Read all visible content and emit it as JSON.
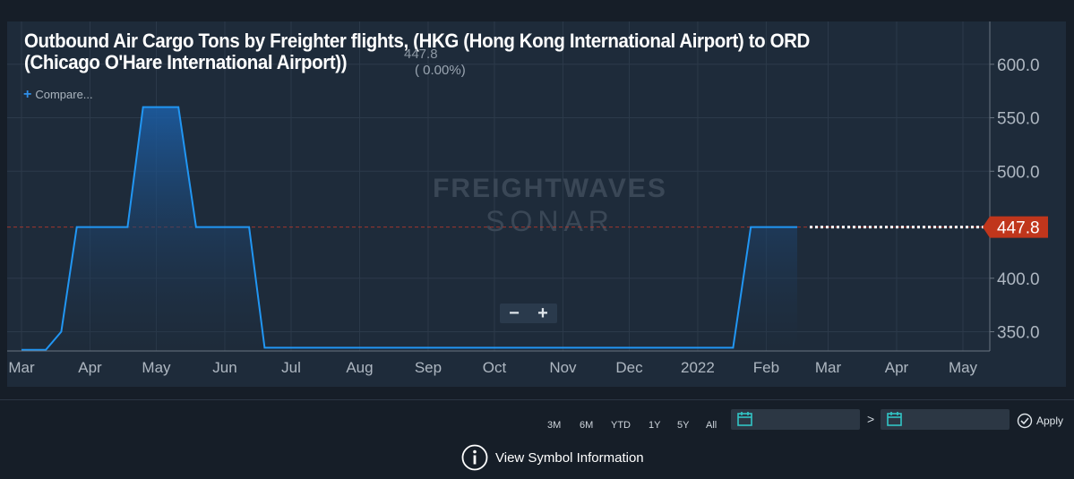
{
  "header": {
    "title": "Outbound Air Cargo Tons by Freighter flights, (HKG (Hong Kong International Airport) to ORD (Chicago O'Hare International Airport))",
    "last_value": "447.8",
    "change": "( 0.00%)",
    "compare_label": "Compare..."
  },
  "watermark": {
    "line1": "FREIGHTWAVES",
    "line2": "SONAR"
  },
  "zoom": {
    "minus": "−",
    "plus": "+"
  },
  "current_price_label": "447.8",
  "colors": {
    "line": "#2196f3",
    "current_label_bg": "#c0361c",
    "reference_line": "#c0392b",
    "panel_bg": "#1e2b3a",
    "page_bg": "#161e28"
  },
  "toolbar": {
    "ranges": [
      "3M",
      "6M",
      "YTD",
      "1Y",
      "5Y",
      "All"
    ],
    "date_from": "",
    "date_to": "",
    "separator": ">",
    "apply_label": "Apply"
  },
  "footer": {
    "symbol_info_label": "View Symbol Information"
  },
  "chart_data": {
    "type": "area",
    "title": "Outbound Air Cargo Tons by Freighter flights, (HKG (Hong Kong International Airport) to ORD (Chicago O'Hare International Airport))",
    "xlabel": "",
    "ylabel": "",
    "x_ticks": [
      "Mar",
      "Apr",
      "May",
      "Jun",
      "Jul",
      "Aug",
      "Sep",
      "Oct",
      "Nov",
      "Dec",
      "2022",
      "Feb",
      "Mar",
      "Apr",
      "May"
    ],
    "y_ticks": [
      350.0,
      400.0,
      447.8,
      500.0,
      550.0,
      600.0
    ],
    "ylim": [
      332,
      640
    ],
    "grid": true,
    "reference_line": 447.8,
    "series": [
      {
        "values": [
          {
            "x": "2021-03-01",
            "y": 333
          },
          {
            "x": "2021-03-12",
            "y": 333
          },
          {
            "x": "2021-03-19",
            "y": 350
          },
          {
            "x": "2021-03-26",
            "y": 447.8
          },
          {
            "x": "2021-04-18",
            "y": 447.8
          },
          {
            "x": "2021-04-25",
            "y": 560
          },
          {
            "x": "2021-05-11",
            "y": 560
          },
          {
            "x": "2021-05-19",
            "y": 447.8
          },
          {
            "x": "2021-06-12",
            "y": 447.8
          },
          {
            "x": "2021-06-19",
            "y": 335
          },
          {
            "x": "2022-01-17",
            "y": 335
          },
          {
            "x": "2022-01-25",
            "y": 447.8
          },
          {
            "x": "2022-02-15",
            "y": 447.8
          }
        ]
      }
    ]
  }
}
